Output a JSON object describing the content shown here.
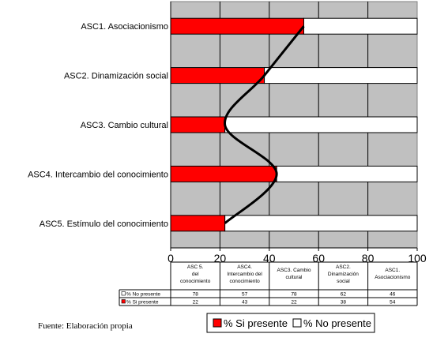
{
  "chart_data": {
    "type": "bar",
    "stacked": true,
    "orientation": "horizontal",
    "categories": [
      "ASC1. Asociacionismo",
      "ASC2. Dinamización social",
      "ASC3. Cambio cultural",
      "ASC4. Intercambio del conocimiento",
      "ASC5. Estímulo del conocimiento"
    ],
    "series": [
      {
        "name": "% Si presente",
        "values": [
          54,
          38,
          22,
          43,
          22
        ],
        "color": "#ff0000"
      },
      {
        "name": "% No presente",
        "values": [
          46,
          62,
          78,
          57,
          78
        ],
        "color": "#ffffff"
      }
    ],
    "xlim": [
      0,
      100
    ],
    "xticks": [
      0,
      20,
      40,
      60,
      80,
      100
    ],
    "grid": true,
    "plot_background": "#c0c0c0",
    "curve": {
      "series": "% Si presente",
      "color": "#000000"
    },
    "legend": {
      "placement": "bottom",
      "entries": [
        "% Si presente",
        "% No presente"
      ]
    },
    "data_table": {
      "columns": [
        [
          "ASC 5.",
          "del",
          "conocimiento"
        ],
        [
          "ASC4.",
          "Intercambio del",
          "conocimiento"
        ],
        [
          "ASC3. Cambio",
          "cultural"
        ],
        [
          "ASC2.",
          "Dinamización",
          "social"
        ],
        [
          "ASC1.",
          "Asociacionismo"
        ]
      ],
      "rows": [
        {
          "label": "% No presente",
          "values": [
            "78",
            "57",
            "78",
            "62",
            "46"
          ]
        },
        {
          "label": "% Si presente",
          "values": [
            "22",
            "43",
            "22",
            "38",
            "54"
          ]
        }
      ]
    }
  },
  "source_note": "Fuente: Elaboración propia"
}
